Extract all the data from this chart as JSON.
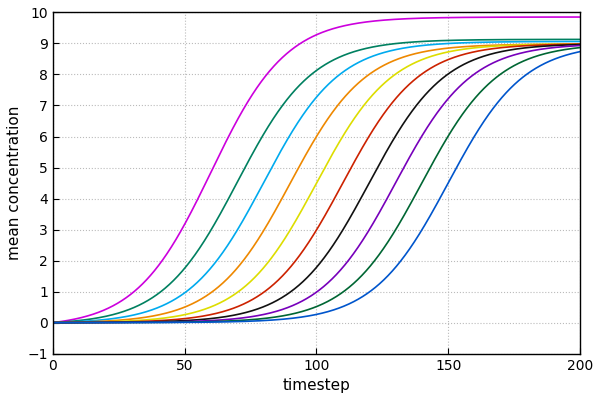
{
  "title": "",
  "xlabel": "timestep",
  "ylabel": "mean concentration",
  "xlim": [
    0,
    200
  ],
  "ylim": [
    -1,
    10
  ],
  "xticks": [
    0,
    50,
    100,
    150,
    200
  ],
  "yticks": [
    -1,
    0,
    1,
    2,
    3,
    4,
    5,
    6,
    7,
    8,
    9,
    10
  ],
  "background_color": "#ffffff",
  "grid_color": "#bbbbbb",
  "curves": [
    {
      "color": "#cc00dd",
      "onset": 0,
      "k": 0.07,
      "L": 10.0
    },
    {
      "color": "#008060",
      "onset": 10,
      "k": 0.07,
      "L": 9.2
    },
    {
      "color": "#00aaee",
      "onset": 20,
      "k": 0.07,
      "L": 9.1
    },
    {
      "color": "#ee8800",
      "onset": 30,
      "k": 0.07,
      "L": 9.0
    },
    {
      "color": "#dddd00",
      "onset": 40,
      "k": 0.07,
      "L": 9.0
    },
    {
      "color": "#cc2200",
      "onset": 50,
      "k": 0.07,
      "L": 9.0
    },
    {
      "color": "#111111",
      "onset": 60,
      "k": 0.07,
      "L": 9.0
    },
    {
      "color": "#7700bb",
      "onset": 70,
      "k": 0.07,
      "L": 9.0
    },
    {
      "color": "#006633",
      "onset": 80,
      "k": 0.07,
      "L": 9.0
    },
    {
      "color": "#0055cc",
      "onset": 90,
      "k": 0.07,
      "L": 9.0
    }
  ],
  "figsize": [
    6.0,
    4.0
  ],
  "dpi": 100
}
